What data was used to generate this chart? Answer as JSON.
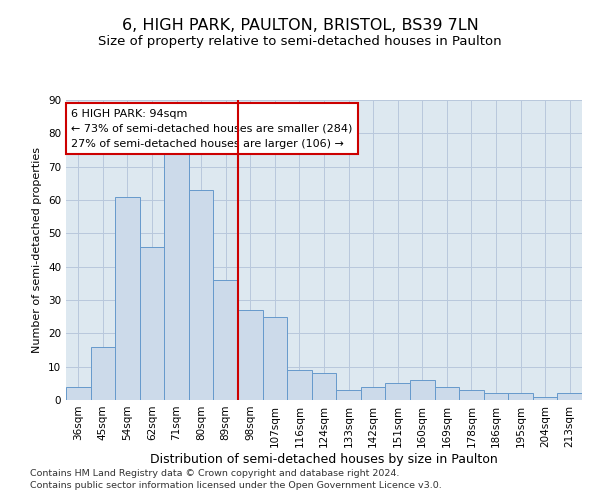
{
  "title1": "6, HIGH PARK, PAULTON, BRISTOL, BS39 7LN",
  "title2": "Size of property relative to semi-detached houses in Paulton",
  "xlabel": "Distribution of semi-detached houses by size in Paulton",
  "ylabel": "Number of semi-detached properties",
  "footer1": "Contains HM Land Registry data © Crown copyright and database right 2024.",
  "footer2": "Contains public sector information licensed under the Open Government Licence v3.0.",
  "annotation_title": "6 HIGH PARK: 94sqm",
  "annotation_line1": "← 73% of semi-detached houses are smaller (284)",
  "annotation_line2": "27% of semi-detached houses are larger (106) →",
  "bar_color": "#ccdaea",
  "bar_edge_color": "#6699cc",
  "grid_color": "#b8c8dc",
  "background_color": "#dde8f0",
  "vline_color": "#cc0000",
  "annotation_box_color": "#ffffff",
  "annotation_box_edge": "#cc0000",
  "categories": [
    "36sqm",
    "45sqm",
    "54sqm",
    "62sqm",
    "71sqm",
    "80sqm",
    "89sqm",
    "98sqm",
    "107sqm",
    "116sqm",
    "124sqm",
    "133sqm",
    "142sqm",
    "151sqm",
    "160sqm",
    "169sqm",
    "178sqm",
    "186sqm",
    "195sqm",
    "204sqm",
    "213sqm"
  ],
  "values": [
    4,
    16,
    61,
    46,
    74,
    63,
    36,
    27,
    25,
    9,
    8,
    3,
    4,
    5,
    6,
    4,
    3,
    2,
    2,
    1,
    2
  ],
  "ylim": [
    0,
    90
  ],
  "yticks": [
    0,
    10,
    20,
    30,
    40,
    50,
    60,
    70,
    80,
    90
  ],
  "title1_fontsize": 11.5,
  "title2_fontsize": 9.5,
  "xlabel_fontsize": 9,
  "ylabel_fontsize": 8,
  "tick_fontsize": 7.5,
  "annotation_fontsize": 8,
  "footer_fontsize": 6.8,
  "vline_bar_index": 6
}
